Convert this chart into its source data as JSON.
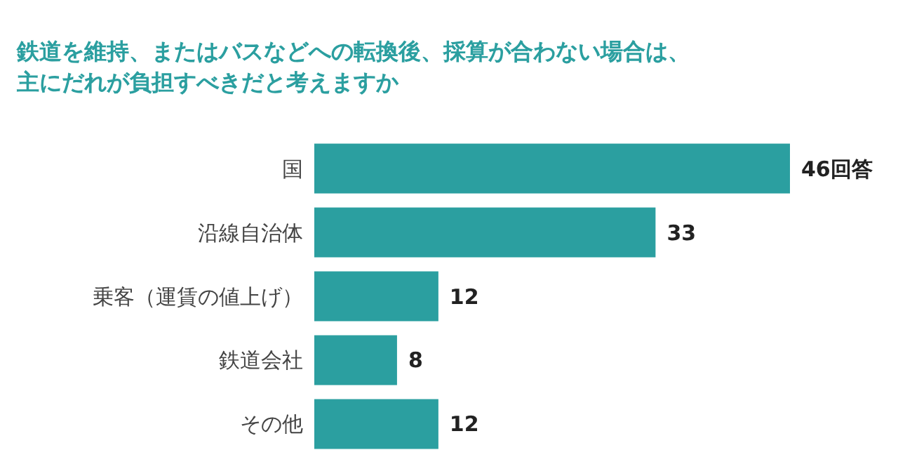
{
  "chart_data": {
    "type": "bar",
    "orientation": "horizontal",
    "title": "鉄道を維持、またはバスなどへの転換後、採算が合わない場合は、主にだれが負担すべきだと考えますか",
    "categories": [
      "国",
      "沿線自治体",
      "乗客（運賃の値上げ）",
      "鉄道会社",
      "その他"
    ],
    "values": [
      46,
      33,
      12,
      8,
      12
    ],
    "value_labels": [
      "46回答",
      "33",
      "12",
      "8",
      "12"
    ],
    "color": "#2b9fa0",
    "grid": false
  }
}
